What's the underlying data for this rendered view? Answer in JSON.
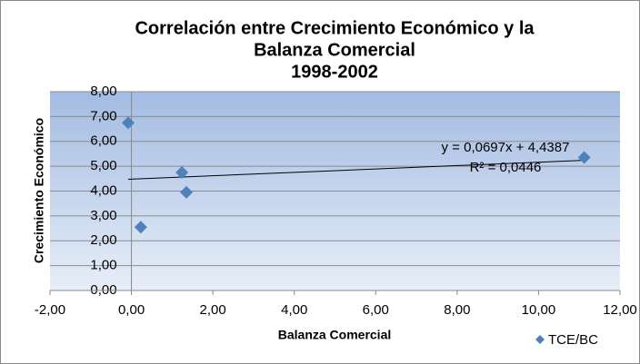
{
  "chart_data": {
    "type": "scatter",
    "title": [
      "Correlación entre Crecimiento Económico y la",
      "Balanza Comercial",
      "1998-2002"
    ],
    "x_label": "Balanza Comercial",
    "y_label": "Crecimiento Económico",
    "series": [
      {
        "name": "TCE/BC",
        "color": "#4f81bd",
        "x": [
          -0.08,
          0.23,
          1.24,
          1.35,
          11.12
        ],
        "values": [
          6.75,
          2.55,
          4.75,
          3.95,
          5.35
        ]
      }
    ],
    "trendline": {
      "equation": "y = 0,0697x + 4,4387",
      "r2": "R² = 0,0446"
    },
    "xlim": [
      -2,
      12
    ],
    "xticks": [
      {
        "value": -2,
        "label": "-2,00"
      },
      {
        "value": 0,
        "label": "0,00"
      },
      {
        "value": 2,
        "label": "2,00"
      },
      {
        "value": 4,
        "label": "4,00"
      },
      {
        "value": 6,
        "label": "6,00"
      },
      {
        "value": 8,
        "label": "8,00"
      },
      {
        "value": 10,
        "label": "10,00"
      },
      {
        "value": 12,
        "label": "12,00"
      }
    ],
    "ylim": [
      0,
      8
    ],
    "yticks": [
      {
        "value": 0,
        "label": "0,00"
      },
      {
        "value": 1,
        "label": "1,00"
      },
      {
        "value": 2,
        "label": "2,00"
      },
      {
        "value": 3,
        "label": "3,00"
      },
      {
        "value": 4,
        "label": "4,00"
      },
      {
        "value": 5,
        "label": "5,00"
      },
      {
        "value": 6,
        "label": "6,00"
      },
      {
        "value": 7,
        "label": "7,00"
      },
      {
        "value": 8,
        "label": "8,00"
      }
    ],
    "grid": true,
    "legend": "bottom-right"
  }
}
